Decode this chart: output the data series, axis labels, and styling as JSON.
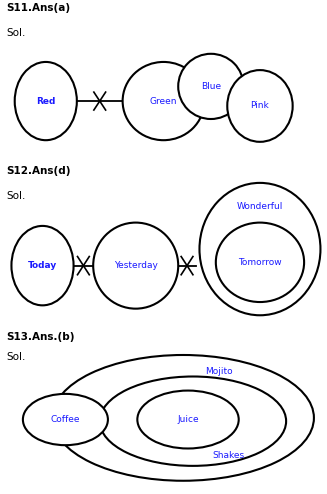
{
  "title1": "S11.Ans(a)",
  "sol1": "Sol.",
  "title2": "S12.Ans(d)",
  "sol2": "Sol.",
  "title3": "S13.Ans.(b)",
  "sol3": "Sol.",
  "label_color": "#1a1aff",
  "background": "#ffffff"
}
